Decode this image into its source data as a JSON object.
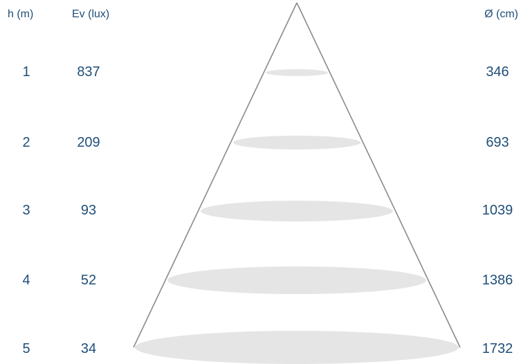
{
  "headers": {
    "height": "h (m)",
    "illuminance": "Ev (lux)",
    "diameter": "Ø (cm)"
  },
  "colors": {
    "text": "#1f4e79",
    "cone_line": "#8a8a8a",
    "ellipse_fill": "#e5e5e5"
  },
  "rows": [
    {
      "h": "1",
      "ev": "837",
      "d": "346"
    },
    {
      "h": "2",
      "ev": "209",
      "d": "693"
    },
    {
      "h": "3",
      "ev": "93",
      "d": "1039"
    },
    {
      "h": "4",
      "ev": "52",
      "d": "1386"
    },
    {
      "h": "5",
      "ev": "34",
      "d": "1732"
    }
  ]
}
